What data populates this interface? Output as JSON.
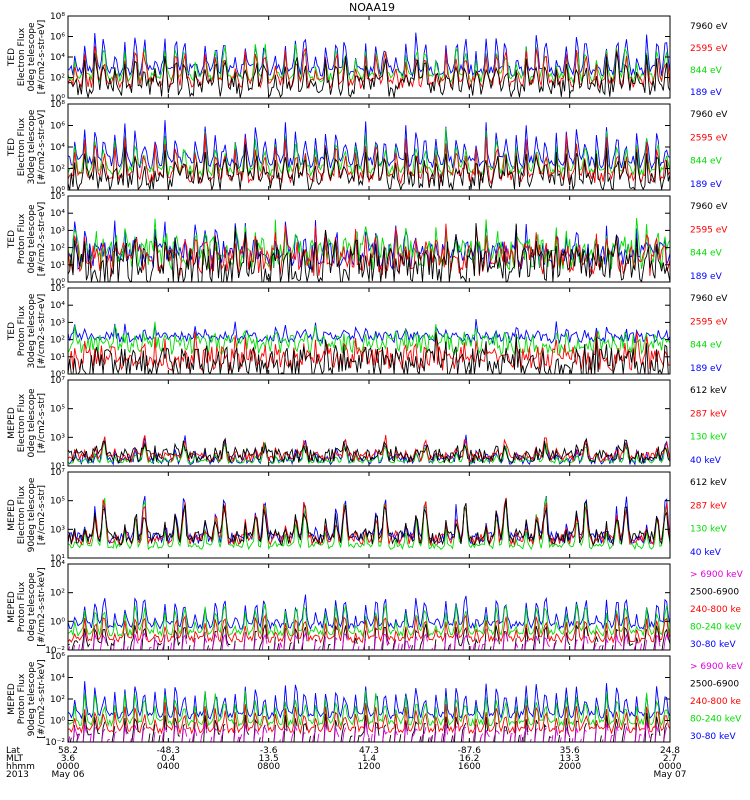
{
  "chart_data": {
    "type": "line",
    "title": "NOAA19",
    "year": "2013",
    "x_range": [
      "2013-05-06 00:00",
      "2013-05-07 00:00"
    ],
    "x_ticks": [
      "0000",
      "0400",
      "0800",
      "1200",
      "1600",
      "2000",
      "0000"
    ],
    "footer": {
      "row_labels": [
        "Lat",
        "MLT",
        "hhmm",
        "2013"
      ],
      "lat": [
        "58.2",
        "-48.3",
        "-3.6",
        "47.3",
        "-87.6",
        "35.6",
        "24.8"
      ],
      "mlt": [
        "3.6",
        "0.4",
        "13.5",
        "1.4",
        "16.2",
        "13.3",
        "2.7"
      ],
      "hhmm": [
        "0000",
        "0400",
        "0800",
        "1200",
        "1600",
        "2000",
        "0000"
      ],
      "dates": [
        "May 06",
        "May 07"
      ]
    },
    "panels": [
      {
        "ylabel": [
          "TED",
          "Electron Flux",
          "0deg telescope",
          "[#/cm2-s-str-eV]"
        ],
        "yscale": "log",
        "ylim": [
          1,
          100000000
        ],
        "y_ticks": [
          "10⁰",
          "10²",
          "10⁴",
          "10⁶",
          "10⁸"
        ],
        "legend": [
          "7960 eV",
          "2595 eV",
          "844 eV",
          "189 eV"
        ],
        "legend_colors": [
          "#000000",
          "#ff0000",
          "#00dd00",
          "#0000ff"
        ],
        "series": [
          {
            "name": "7960 eV",
            "color": "#000000",
            "base": 1,
            "noise": 1,
            "peak": 4
          },
          {
            "name": "2595 eV",
            "color": "#ff0000",
            "base": 1.5,
            "noise": 0.6,
            "peak": 5
          },
          {
            "name": "844 eV",
            "color": "#00dd00",
            "base": 2,
            "noise": 0.5,
            "peak": 5.5
          },
          {
            "name": "189 eV",
            "color": "#0000ff",
            "base": 2.7,
            "noise": 0.6,
            "peak": 6.4
          }
        ]
      },
      {
        "ylabel": [
          "TED",
          "Electron Flux",
          "30deg telescope",
          "[#/cm2-s-str-eV]"
        ],
        "yscale": "log",
        "ylim": [
          1,
          100000000
        ],
        "y_ticks": [
          "10⁰",
          "10²",
          "10⁴",
          "10⁶",
          "10⁸"
        ],
        "legend": [
          "7960 eV",
          "2595 eV",
          "844 eV",
          "189 eV"
        ],
        "legend_colors": [
          "#000000",
          "#ff0000",
          "#00dd00",
          "#0000ff"
        ],
        "series": [
          {
            "name": "7960 eV",
            "color": "#000000",
            "base": 0.8,
            "noise": 1,
            "peak": 4
          },
          {
            "name": "2595 eV",
            "color": "#ff0000",
            "base": 1.2,
            "noise": 0.6,
            "peak": 5
          },
          {
            "name": "844 eV",
            "color": "#00dd00",
            "base": 1.8,
            "noise": 0.5,
            "peak": 5.5
          },
          {
            "name": "189 eV",
            "color": "#0000ff",
            "base": 2.6,
            "noise": 0.6,
            "peak": 6.3
          }
        ]
      },
      {
        "ylabel": [
          "TED",
          "Proton Flux",
          "0deg telescope",
          "[#/cm2-s-str-eV]"
        ],
        "yscale": "log",
        "ylim": [
          1,
          100000
        ],
        "y_ticks": [
          "10⁰",
          "10¹",
          "10²",
          "10³",
          "10⁴",
          "10⁵"
        ],
        "legend": [
          "7960 eV",
          "2595 eV",
          "844 eV",
          "189 eV"
        ],
        "legend_colors": [
          "#000000",
          "#ff0000",
          "#00dd00",
          "#0000ff"
        ],
        "series": [
          {
            "name": "7960 eV",
            "color": "#000000",
            "base": 0.8,
            "noise": 1.2,
            "peak": 3
          },
          {
            "name": "2595 eV",
            "color": "#ff0000",
            "base": 1.2,
            "noise": 0.9,
            "peak": 3.5
          },
          {
            "name": "844 eV",
            "color": "#00dd00",
            "base": 1.6,
            "noise": 0.9,
            "peak": 3.6
          },
          {
            "name": "189 eV",
            "color": "#0000ff",
            "base": 1.5,
            "noise": 0.8,
            "peak": 3.9
          }
        ]
      },
      {
        "ylabel": [
          "TED",
          "Proton Flux",
          "30deg telescope",
          "[#/cm2-s-str-eV]"
        ],
        "yscale": "log",
        "ylim": [
          1,
          100000
        ],
        "y_ticks": [
          "10⁰",
          "10¹",
          "10²",
          "10³",
          "10⁴",
          "10⁵"
        ],
        "legend": [
          "7960 eV",
          "2595 eV",
          "844 eV",
          "189 eV"
        ],
        "legend_colors": [
          "#000000",
          "#ff0000",
          "#00dd00",
          "#0000ff"
        ],
        "series": [
          {
            "name": "7960 eV",
            "color": "#000000",
            "base": 0.5,
            "noise": 1,
            "peak": 2.8
          },
          {
            "name": "2595 eV",
            "color": "#ff0000",
            "base": 0.9,
            "noise": 0.7,
            "peak": 3.2
          },
          {
            "name": "844 eV",
            "color": "#00dd00",
            "base": 1.7,
            "noise": 0.6,
            "peak": 3.4
          },
          {
            "name": "189 eV",
            "color": "#0000ff",
            "base": 2.1,
            "noise": 0.3,
            "peak": 4
          }
        ]
      },
      {
        "ylabel": [
          "MEPED",
          "Electron Flux",
          "0deg telescope",
          "[#/cm2-s-str]"
        ],
        "yscale": "log",
        "ylim": [
          10,
          10000000
        ],
        "y_ticks": [
          "10¹",
          "10³",
          "10⁵",
          "10⁷"
        ],
        "legend": [
          "612 keV",
          "287 keV",
          "130 keV",
          "40 keV"
        ],
        "legend_colors": [
          "#000000",
          "#ff0000",
          "#00dd00",
          "#0000ff"
        ],
        "series": [
          {
            "name": "612 keV",
            "color": "#000000",
            "base": 1.7,
            "noise": 0.5,
            "peak": 3.5
          },
          {
            "name": "287 keV",
            "color": "#ff0000",
            "base": 1.6,
            "noise": 0.3,
            "peak": 4.5
          },
          {
            "name": "130 keV",
            "color": "#00dd00",
            "base": 1.3,
            "noise": 0.1,
            "peak": 4.2
          },
          {
            "name": "40 keV",
            "color": "#0000ff",
            "base": 1.4,
            "noise": 0.3,
            "peak": 4.8
          }
        ]
      },
      {
        "ylabel": [
          "MEPED",
          "Electron Flux",
          "90deg telescope",
          "[#/cm2-s-str]"
        ],
        "yscale": "log",
        "ylim": [
          10,
          10000000
        ],
        "y_ticks": [
          "10¹",
          "10³",
          "10⁵",
          "10⁷"
        ],
        "legend": [
          "612 keV",
          "287 keV",
          "130 keV",
          "40 keV"
        ],
        "legend_colors": [
          "#000000",
          "#ff0000",
          "#00dd00",
          "#0000ff"
        ],
        "series": [
          {
            "name": "612 keV",
            "color": "#000000",
            "base": 2.4,
            "noise": 0.5,
            "peak": 5.5
          },
          {
            "name": "287 keV",
            "color": "#ff0000",
            "base": 2.3,
            "noise": 0.4,
            "peak": 5.7
          },
          {
            "name": "130 keV",
            "color": "#00dd00",
            "base": 1.8,
            "noise": 0.2,
            "peak": 5.9
          },
          {
            "name": "40 keV",
            "color": "#0000ff",
            "base": 2.4,
            "noise": 0.4,
            "peak": 6
          }
        ]
      },
      {
        "ylabel": [
          "MEPED",
          "Proton Flux",
          "0deg telescope",
          "[#/cm2-s-str-keV]"
        ],
        "yscale": "log",
        "ylim": [
          0.01,
          1000000
        ],
        "y_ticks": [
          "10⁻²",
          "10⁰",
          "10²",
          "10⁴"
        ],
        "legend": [
          "> 6900 keV",
          "2500-6900",
          "240-800 ke",
          "80-240 keV",
          "30-80 keV"
        ],
        "legend_colors": [
          "#dd00dd",
          "#000000",
          "#ff0000",
          "#00dd00",
          "#0000ff"
        ],
        "series": [
          {
            "name": "> 6900 keV",
            "color": "#dd00dd",
            "base": -1.6,
            "noise": 0.3,
            "peak": -0.4,
            "sparse": true
          },
          {
            "name": "2500-6900",
            "color": "#000000",
            "base": -1.5,
            "noise": 0.2,
            "peak": 0.5,
            "sparse": true
          },
          {
            "name": "240-800 ke",
            "color": "#ff0000",
            "base": -1,
            "noise": 0.3,
            "peak": 1.5
          },
          {
            "name": "80-240 keV",
            "color": "#00dd00",
            "base": -0.4,
            "noise": 0.3,
            "peak": 2.6
          },
          {
            "name": "30-80 keV",
            "color": "#0000ff",
            "base": 0.3,
            "noise": 0.35,
            "peak": 3.2
          }
        ]
      },
      {
        "ylabel": [
          "MEPED",
          "Proton Flux",
          "90deg telescope",
          "[#/cm2-s-str-keV]"
        ],
        "yscale": "log",
        "ylim": [
          0.01,
          1000000
        ],
        "y_ticks": [
          "10⁻²",
          "10⁰",
          "10²",
          "10⁴",
          "10⁶"
        ],
        "legend": [
          "> 6900 keV",
          "2500-6900",
          "240-800 ke",
          "80-240 keV",
          "30-80 keV"
        ],
        "legend_colors": [
          "#dd00dd",
          "#000000",
          "#ff0000",
          "#00dd00",
          "#0000ff"
        ],
        "series": [
          {
            "name": "> 6900 keV",
            "color": "#dd00dd",
            "base": -1.5,
            "noise": 0.3,
            "peak": -0.3,
            "sparse": true
          },
          {
            "name": "2500-6900",
            "color": "#000000",
            "base": -1.4,
            "noise": 0.2,
            "peak": 0.6,
            "sparse": true
          },
          {
            "name": "240-800 ke",
            "color": "#ff0000",
            "base": -0.9,
            "noise": 0.3,
            "peak": 1.7
          },
          {
            "name": "80-240 keV",
            "color": "#00dd00",
            "base": -0.2,
            "noise": 0.3,
            "peak": 2.8
          },
          {
            "name": "30-80 keV",
            "color": "#0000ff",
            "base": 0.5,
            "noise": 0.35,
            "peak": 3.6
          }
        ]
      }
    ]
  }
}
